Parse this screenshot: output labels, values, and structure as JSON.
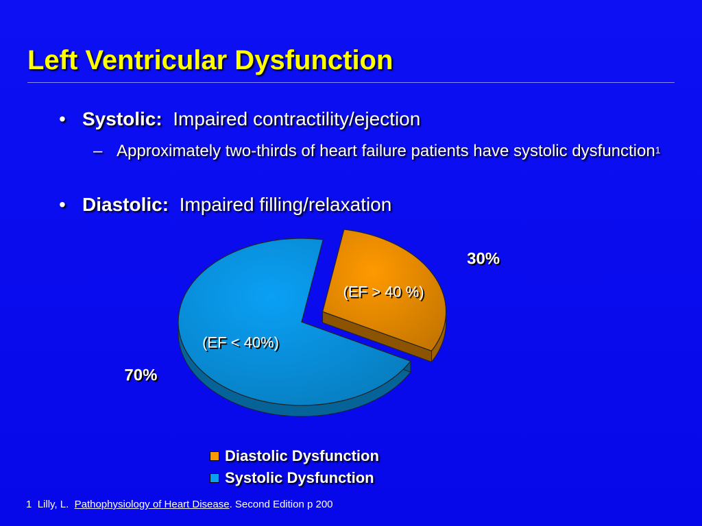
{
  "slide": {
    "title": "Left Ventricular Dysfunction",
    "bullets": [
      {
        "bullet": "•",
        "label": "Systolic:",
        "text": "Impaired contractility/ejection"
      },
      {
        "bullet": "•",
        "label": "Diastolic:",
        "text": "Impaired filling/relaxation"
      }
    ],
    "sub_bullet": {
      "dash": "–",
      "text": "Approximately two-thirds of heart failure patients have systolic dysfunction",
      "sup": "1"
    },
    "footnote": {
      "num": "1",
      "prefix": "Lilly, L.",
      "book": "Pathophysiology of Heart Disease",
      "suffix": ".  Second Edition p 200"
    }
  },
  "chart_data": {
    "type": "pie",
    "slices": [
      {
        "name": "Diastolic Dysfunction",
        "value": 30,
        "label": "30%",
        "note": "(EF > 40 %)",
        "color": "#ff9900"
      },
      {
        "name": "Systolic Dysfunction",
        "value": 70,
        "label": "70%",
        "note": "(EF < 40%)",
        "color": "#0aa0f5"
      }
    ],
    "legend_placement": "bottom",
    "exploded": "Diastolic Dysfunction"
  }
}
